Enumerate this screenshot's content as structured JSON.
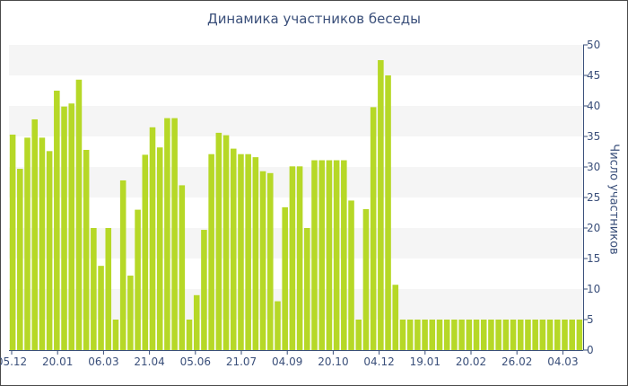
{
  "chart_data": {
    "type": "bar",
    "title": "Динамика участников беседы",
    "xlabel": "",
    "ylabel": "Число участников",
    "ylim": [
      0,
      50
    ],
    "yticks": [
      0,
      5,
      10,
      15,
      20,
      25,
      30,
      35,
      40,
      45,
      50
    ],
    "grid": "alternating horizontal bands",
    "x_tick_labels": [
      "05.12",
      "20.01",
      "06.03",
      "21.04",
      "05.06",
      "21.07",
      "04.09",
      "20.10",
      "04.12",
      "19.01",
      "20.02",
      "26.02",
      "04.03"
    ],
    "values": [
      35.3,
      29.7,
      34.8,
      37.8,
      34.8,
      32.6,
      42.5,
      39.9,
      40.4,
      44.3,
      32.8,
      20.0,
      13.8,
      20.0,
      5.0,
      27.8,
      12.2,
      23.0,
      32.0,
      36.5,
      33.2,
      38.0,
      38.0,
      27.0,
      5.0,
      9.0,
      19.7,
      32.1,
      35.6,
      35.2,
      33.0,
      32.1,
      32.1,
      31.6,
      29.3,
      29.0,
      8.0,
      23.4,
      30.1,
      30.1,
      20.0,
      31.1,
      31.1,
      31.1,
      31.1,
      31.1,
      24.5,
      5.0,
      23.1,
      39.8,
      47.5,
      45.0,
      10.7,
      5.0,
      5.0,
      5.0,
      5.0,
      5.0,
      5.0,
      5.0,
      5.0,
      5.0,
      5.0,
      5.0,
      5.0,
      5.0,
      5.0,
      5.0,
      5.0,
      5.0,
      5.0,
      5.0,
      5.0,
      5.0,
      5.0,
      5.0,
      5.0,
      5.0
    ],
    "bar_color": "#b6d827",
    "band_color": "#f5f5f5",
    "axis_color": "#3a4f7a"
  }
}
